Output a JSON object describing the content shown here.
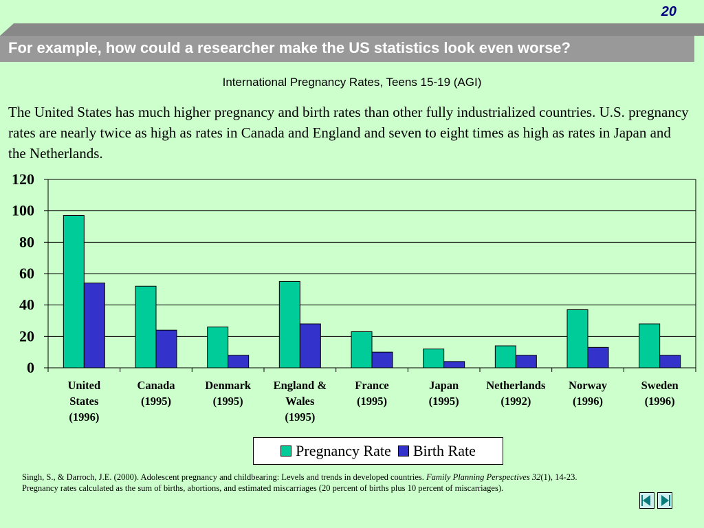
{
  "slide_number": "20",
  "banner": {
    "title": "For example, how could a researcher make the US statistics look even worse?"
  },
  "subtitle": "International Pregnancy Rates, Teens 15-19 (AGI)",
  "body_text": "The United States has much higher pregnancy and birth rates than other fully industrialized countries.  U.S. pregnancy rates are nearly twice as high as rates in Canada and England and seven to eight times as high as rates in Japan and the Netherlands.",
  "chart_data": {
    "type": "bar",
    "categories": [
      [
        "United",
        "States",
        "(1996)"
      ],
      [
        "Canada",
        "(1995)"
      ],
      [
        "Denmark",
        "(1995)"
      ],
      [
        "England &",
        "Wales",
        "(1995)"
      ],
      [
        "France",
        "(1995)"
      ],
      [
        "Japan",
        "(1995)"
      ],
      [
        "Netherlands",
        "(1992)"
      ],
      [
        "Norway",
        "(1996)"
      ],
      [
        "Sweden",
        "(1996)"
      ]
    ],
    "series": [
      {
        "name": "Pregnancy Rate",
        "color": "#00cc99",
        "values": [
          97,
          52,
          26,
          55,
          23,
          12,
          14,
          37,
          28
        ]
      },
      {
        "name": "Birth Rate",
        "color": "#3333cc",
        "values": [
          54,
          24,
          8,
          28,
          10,
          4,
          8,
          13,
          8
        ]
      }
    ],
    "ylim": [
      0,
      120
    ],
    "yticks": [
      0,
      20,
      40,
      60,
      80,
      100,
      120
    ],
    "grid": true,
    "legend_position": "bottom"
  },
  "legend": {
    "items": [
      "Pregnancy Rate",
      "Birth Rate"
    ]
  },
  "citation": {
    "authors": "Singh, S., &  Darroch, J.E. (2000). Adolescent pregnancy and childbearing: Levels and trends in developed countries. ",
    "journal": "Family Planning Perspectives 32",
    "pages": "(1), 14-23.",
    "note": "Pregnancy rates calculated as the sum of births, abortions, and estimated miscarriages (20 percent of births plus 10 percent of miscarriages)."
  },
  "nav": {
    "back_icon": "previous-slide-icon",
    "forward_icon": "next-slide-icon"
  }
}
